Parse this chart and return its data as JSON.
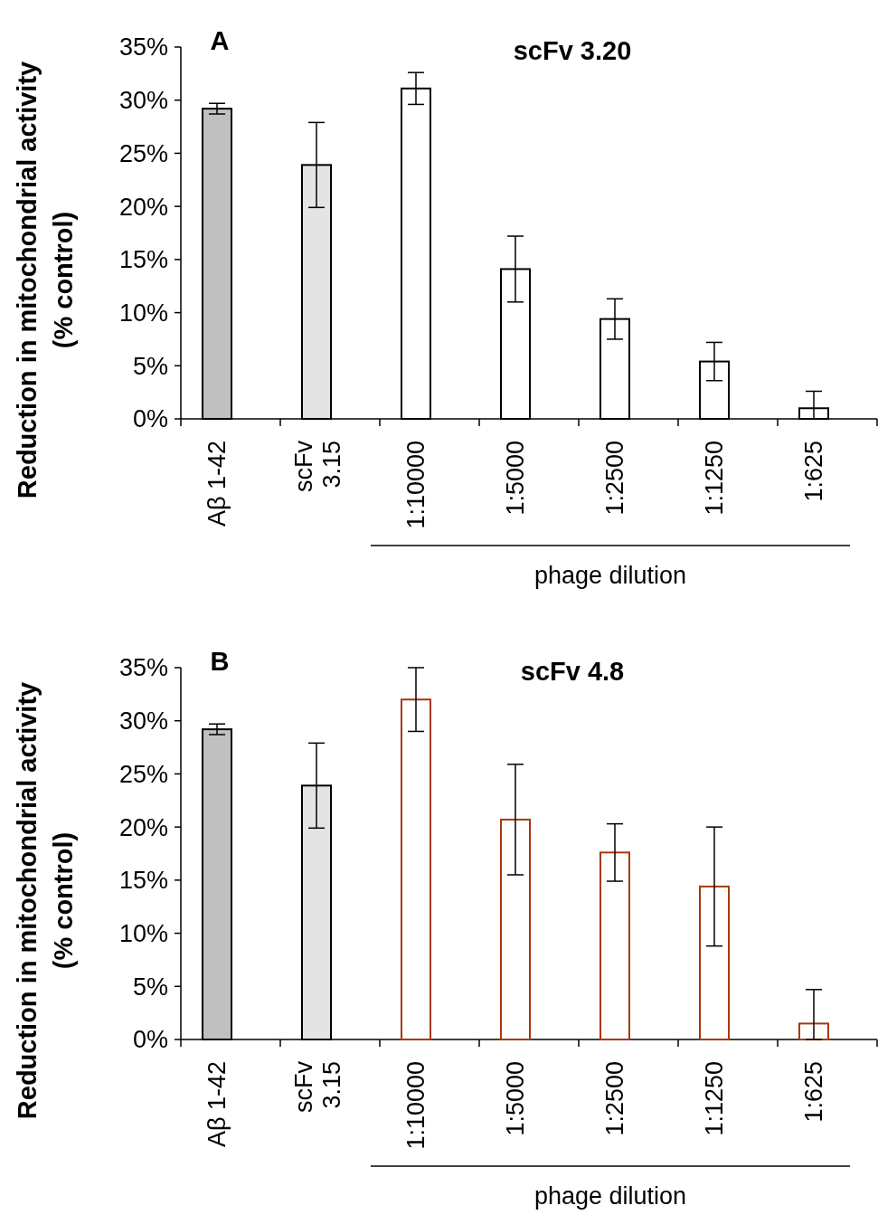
{
  "chart_data": [
    {
      "type": "bar",
      "title": "scFv 3.20",
      "ylabel": "Reduction in mitochondrial activity (% control)",
      "annotations": [
        "A",
        "phage dilution"
      ],
      "categories": [
        "Aβ 1-42",
        "scFv 3.15",
        "1:10000",
        "1:5000",
        "1:2500",
        "1:1250",
        "1:625"
      ],
      "ylim": [
        0,
        35
      ],
      "yticks": [
        {
          "value": 0,
          "label": "0%"
        },
        {
          "value": 5,
          "label": "5%"
        },
        {
          "value": 10,
          "label": "10%"
        },
        {
          "value": 15,
          "label": "15%"
        },
        {
          "value": 20,
          "label": "20%"
        },
        {
          "value": 25,
          "label": "25%"
        },
        {
          "value": 30,
          "label": "30%"
        },
        {
          "value": 35,
          "label": "35%"
        }
      ],
      "series": [
        {
          "colors": [
            "#c0c0c0",
            "#e4e4e4",
            null,
            null,
            null,
            null,
            null
          ],
          "values": [
            29.2,
            23.9,
            null,
            null,
            null,
            null,
            null
          ],
          "errors": [
            0.5,
            4,
            null,
            null,
            null,
            null,
            null
          ]
        },
        {
          "color": "#000000",
          "values": [
            null,
            null,
            31.1,
            14.1,
            9.4,
            5.4,
            1.0
          ],
          "errors": [
            null,
            null,
            1.5,
            3.1,
            1.9,
            1.8,
            [
              0,
              2.6
            ]
          ]
        }
      ]
    },
    {
      "type": "bar",
      "title": "scFv 4.8",
      "ylabel": "Reduction in mitochondrial activity (% control)",
      "annotations": [
        "B",
        "phage dilution"
      ],
      "categories": [
        "Aβ 1-42",
        "scFv 3.15",
        "1:10000",
        "1:5000",
        "1:2500",
        "1:1250",
        "1:625"
      ],
      "ylim": [
        0,
        35
      ],
      "yticks": [
        {
          "value": 0,
          "label": "0%"
        },
        {
          "value": 5,
          "label": "5%"
        },
        {
          "value": 10,
          "label": "10%"
        },
        {
          "value": 15,
          "label": "15%"
        },
        {
          "value": 20,
          "label": "20%"
        },
        {
          "value": 25,
          "label": "25%"
        },
        {
          "value": 30,
          "label": "30%"
        },
        {
          "value": 35,
          "label": "35%"
        }
      ],
      "series": [
        {
          "colors": [
            "#c0c0c0",
            "#e4e4e4",
            null,
            null,
            null,
            null,
            null
          ],
          "values": [
            29.2,
            23.9,
            null,
            null,
            null,
            null,
            null
          ],
          "errors": [
            0.5,
            4,
            null,
            null,
            null,
            null,
            null
          ]
        },
        {
          "color": "#a8380c",
          "values": [
            null,
            null,
            32.0,
            20.7,
            17.6,
            14.4,
            1.5
          ],
          "errors": [
            null,
            null,
            3,
            5.2,
            2.7,
            5.6,
            [
              0,
              4.7
            ]
          ]
        }
      ]
    }
  ]
}
